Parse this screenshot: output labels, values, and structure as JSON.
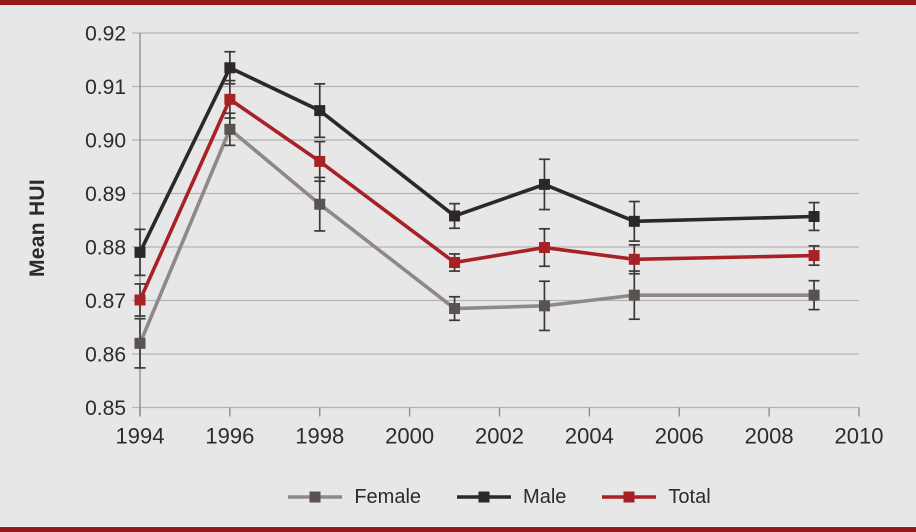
{
  "frame": {
    "background": "#e8e7e7",
    "top_bar_color": "#951a1b",
    "bottom_bar_color": "#951a1b"
  },
  "chart_data": {
    "type": "line",
    "title": "",
    "xlabel": "",
    "ylabel": "Mean HUI",
    "xlim": [
      1994,
      2010
    ],
    "ylim": [
      0.85,
      0.92
    ],
    "xticks": [
      1994,
      1996,
      1998,
      2000,
      2002,
      2004,
      2006,
      2008,
      2010
    ],
    "yticks": [
      "0.85",
      "0.86",
      "0.87",
      "0.88",
      "0.89",
      "0.90",
      "0.91",
      "0.92"
    ],
    "grid": true,
    "legend_position": "bottom",
    "x": [
      1994,
      1996,
      1998,
      2001,
      2003,
      2005,
      2009
    ],
    "error_bar_color": "#3c3838",
    "grid_color": "#b5b3b3",
    "axis_color": "#8f8d8d",
    "series": [
      {
        "name": "Female",
        "color": "#8f8886",
        "marker_color": "#585250",
        "values": [
          0.862,
          0.902,
          0.888,
          0.8685,
          0.869,
          0.871,
          0.871
        ],
        "errors": [
          0.0046,
          0.003,
          0.005,
          0.0022,
          0.0046,
          0.0045,
          0.0027
        ]
      },
      {
        "name": "Male",
        "color": "#2d2828",
        "marker_color": "#2d2828",
        "values": [
          0.879,
          0.9135,
          0.9055,
          0.8858,
          0.8917,
          0.8848,
          0.8857
        ],
        "errors": [
          0.0043,
          0.003,
          0.005,
          0.0023,
          0.0047,
          0.0037,
          0.0026
        ]
      },
      {
        "name": "Total",
        "color": "#a82125",
        "marker_color": "#a82125",
        "values": [
          0.8701,
          0.9076,
          0.896,
          0.8771,
          0.8799,
          0.8777,
          0.8784
        ],
        "errors": [
          0.003,
          0.0035,
          0.0037,
          0.0016,
          0.0035,
          0.0027,
          0.0018
        ]
      }
    ]
  }
}
